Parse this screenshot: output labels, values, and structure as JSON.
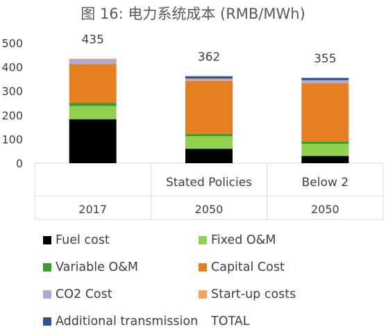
{
  "title": "图 16: 电力系统成本 (RMB/MWh)",
  "chart_data": {
    "type": "bar",
    "stacked": true,
    "title": "图 16: 电力系统成本 (RMB/MWh)",
    "categories": [
      {
        "year": "2017",
        "scenario": ""
      },
      {
        "year": "2050",
        "scenario": "Stated Policies"
      },
      {
        "year": "2050",
        "scenario": "Below 2"
      }
    ],
    "series": [
      {
        "name": "Fuel cost",
        "color": "#000000",
        "values": [
          183,
          60,
          30
        ]
      },
      {
        "name": "Fixed O&M",
        "color": "#92d050",
        "values": [
          55,
          52,
          50
        ]
      },
      {
        "name": "Variable O&M",
        "color": "#33a02c",
        "values": [
          12,
          10,
          10
        ]
      },
      {
        "name": "Capital Cost",
        "color": "#e67e22",
        "values": [
          162,
          220,
          243
        ]
      },
      {
        "name": "CO2 Cost",
        "color": "#b4a7d6",
        "values": [
          20,
          5,
          10
        ]
      },
      {
        "name": "Start-up costs",
        "color": "#f4a460",
        "values": [
          3,
          5,
          2
        ]
      },
      {
        "name": "Additional transmission",
        "color": "#2f5597",
        "values": [
          0,
          10,
          10
        ]
      },
      {
        "name": "TOTAL",
        "color": "none",
        "values": [
          435,
          362,
          355
        ]
      }
    ],
    "totals": [
      "435",
      "362",
      "355"
    ],
    "y_ticks": [
      "0",
      "100",
      "200",
      "300",
      "400",
      "500"
    ],
    "ylim": [
      0,
      500
    ],
    "grid": false,
    "legend_position": "bottom"
  }
}
